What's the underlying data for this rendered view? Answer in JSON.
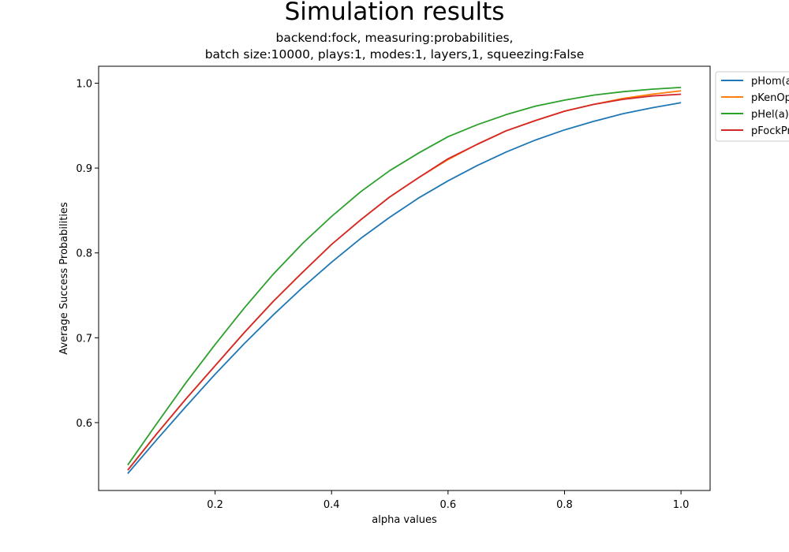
{
  "chart_data": {
    "type": "line",
    "title": "Simulation results",
    "subtitle": [
      "backend:fock, measuring:probabilities,",
      "batch size:10000, plays:1, modes:1, layers,1, squeezing:False"
    ],
    "xlabel": "alpha values",
    "ylabel": "Average Success Probabilities",
    "xlim": [
      0.0,
      1.05
    ],
    "ylim": [
      0.52,
      1.02
    ],
    "xticks": [
      0.2,
      0.4,
      0.6,
      0.8,
      1.0
    ],
    "xtick_labels": [
      "0.2",
      "0.4",
      "0.6",
      "0.8",
      "1.0"
    ],
    "yticks": [
      0.6,
      0.7,
      0.8,
      0.9,
      1.0
    ],
    "ytick_labels": [
      "0.6",
      "0.7",
      "0.8",
      "0.9",
      "1.0"
    ],
    "grid": false,
    "legend_position": "outside top-right",
    "x": [
      0.05,
      0.1,
      0.15,
      0.2,
      0.25,
      0.3,
      0.35,
      0.4,
      0.45,
      0.5,
      0.55,
      0.6,
      0.65,
      0.7,
      0.75,
      0.8,
      0.85,
      0.9,
      0.95,
      1.0
    ],
    "series": [
      {
        "name": "pHom(a)",
        "color": "#1f77b4",
        "values": [
          0.54,
          0.58,
          0.619,
          0.657,
          0.693,
          0.727,
          0.759,
          0.789,
          0.817,
          0.842,
          0.865,
          0.885,
          0.903,
          0.919,
          0.933,
          0.945,
          0.955,
          0.964,
          0.971,
          0.977
        ]
      },
      {
        "name": "pKenOp(a)",
        "color": "#ff7f0e",
        "values": [
          0.544,
          0.587,
          0.628,
          0.667,
          0.706,
          0.743,
          0.777,
          0.81,
          0.839,
          0.866,
          0.889,
          0.91,
          0.928,
          0.944,
          0.956,
          0.967,
          0.975,
          0.982,
          0.987,
          0.991
        ]
      },
      {
        "name": "pHel(a)",
        "color": "#2ca02c",
        "values": [
          0.55,
          0.599,
          0.647,
          0.692,
          0.735,
          0.775,
          0.811,
          0.843,
          0.872,
          0.897,
          0.918,
          0.937,
          0.951,
          0.963,
          0.973,
          0.98,
          0.986,
          0.99,
          0.993,
          0.995
        ]
      },
      {
        "name": "pFockProb(a)",
        "color": "#d62728",
        "values": [
          0.544,
          0.587,
          0.628,
          0.667,
          0.706,
          0.743,
          0.777,
          0.81,
          0.839,
          0.866,
          0.889,
          0.911,
          0.928,
          0.944,
          0.956,
          0.967,
          0.975,
          0.981,
          0.985,
          0.987
        ]
      }
    ]
  }
}
